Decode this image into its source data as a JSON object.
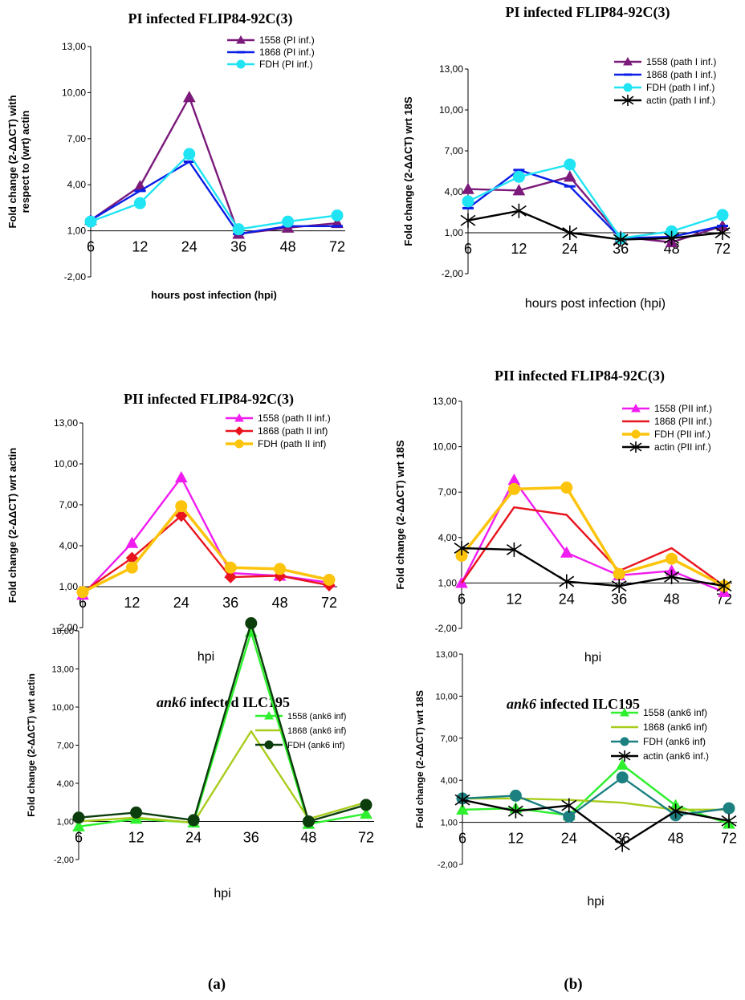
{
  "panel_labels": [
    "(a)",
    "(b)"
  ],
  "chart_data": [
    {
      "type": "line",
      "title": "PI infected FLIP84-92C(3)",
      "ylabel": "Fold change (2-ΔΔCT) with respect to (wrt) actin",
      "xlabel": "hours post infection (hpi)",
      "categories": [
        "6",
        "12",
        "24",
        "36",
        "48",
        "72"
      ],
      "yticks": [
        "-2,00",
        "1,00",
        "4,00",
        "7,00",
        "10,00",
        "13,00"
      ],
      "ylim": [
        -2,
        13
      ],
      "series": [
        {
          "name": "1558 (PI inf.)",
          "color": "#7b1a7b",
          "marker": "triangle",
          "values": [
            1.7,
            3.9,
            9.7,
            0.8,
            1.2,
            1.5
          ]
        },
        {
          "name": "1868 (PI inf.)",
          "color": "#0a1ee6",
          "marker": "dash",
          "values": [
            1.7,
            3.6,
            5.5,
            0.8,
            1.3,
            1.3
          ]
        },
        {
          "name": "FDH (PI inf.)",
          "color": "#20e4f4",
          "marker": "circle",
          "values": [
            1.6,
            2.8,
            6.0,
            1.1,
            1.6,
            2.0
          ]
        }
      ]
    },
    {
      "type": "line",
      "title": "PI infected FLIP84-92C(3)",
      "ylabel": "Fold change (2-ΔΔCT) wrt 18S",
      "xlabel": "hours post infection (hpi)",
      "categories": [
        "6",
        "12",
        "24",
        "36",
        "48",
        "72"
      ],
      "yticks": [
        "-2,00",
        "1,00",
        "4,00",
        "7,00",
        "10,00",
        "13,00"
      ],
      "ylim": [
        -2,
        13
      ],
      "series": [
        {
          "name": "1558 (path I inf.)",
          "color": "#7b1a7b",
          "marker": "triangle",
          "values": [
            4.2,
            4.1,
            5.1,
            0.7,
            0.3,
            1.5
          ]
        },
        {
          "name": "1868 (path I inf.)",
          "color": "#0a1ee6",
          "marker": "dash",
          "values": [
            2.8,
            5.6,
            4.4,
            0.6,
            0.7,
            1.5
          ]
        },
        {
          "name": "FDH (path I inf.)",
          "color": "#20e4f4",
          "marker": "circle",
          "values": [
            3.3,
            5.1,
            6.0,
            0.6,
            1.1,
            2.3
          ]
        },
        {
          "name": "actin (path I inf.)",
          "color": "#000000",
          "marker": "star",
          "values": [
            1.9,
            2.6,
            1.0,
            0.5,
            0.6,
            1.0
          ]
        }
      ]
    },
    {
      "type": "line",
      "title": "PII infected FLIP84-92C(3)",
      "ylabel": "Fold change (2-ΔΔCT) wrt actin",
      "xlabel": "hpi",
      "categories": [
        "6",
        "12",
        "24",
        "36",
        "48",
        "72"
      ],
      "yticks": [
        "-2,00",
        "1,00",
        "4,00",
        "7,00",
        "10,00",
        "13,00"
      ],
      "ylim": [
        -2,
        13
      ],
      "series": [
        {
          "name": "1558 (path II inf.)",
          "color": "#f01cf0",
          "marker": "triangle",
          "values": [
            0.4,
            4.2,
            9.0,
            2.0,
            1.8,
            1.3
          ]
        },
        {
          "name": "1868 (path II inf)",
          "color": "#e8141e",
          "marker": "diamond",
          "values": [
            0.6,
            3.1,
            6.2,
            1.7,
            1.8,
            1.1
          ]
        },
        {
          "name": "FDH (path II inf)",
          "color": "#fcc40c",
          "marker": "circle",
          "values": [
            0.6,
            2.4,
            6.9,
            2.4,
            2.3,
            1.5
          ]
        }
      ]
    },
    {
      "type": "line",
      "title": "PII infected FLIP84-92C(3)",
      "ylabel": "Fold change (2-ΔΔCT) wrt 18S",
      "xlabel": "hpi",
      "categories": [
        "6",
        "12",
        "24",
        "36",
        "48",
        "72"
      ],
      "yticks": [
        "-2,00",
        "1,00",
        "4,00",
        "7,00",
        "10,00",
        "13,00"
      ],
      "ylim": [
        -2,
        13
      ],
      "series": [
        {
          "name": "1558 (PII inf.)",
          "color": "#f01cf0",
          "marker": "triangle",
          "values": [
            1.0,
            7.8,
            3.0,
            1.5,
            1.8,
            0.4
          ]
        },
        {
          "name": "1868 (PII inf.)",
          "color": "#e8141e",
          "marker": "none",
          "values": [
            1.0,
            6.0,
            5.5,
            1.8,
            3.3,
            0.8
          ]
        },
        {
          "name": "FDH (PII inf.)",
          "color": "#fcc40c",
          "marker": "circle",
          "values": [
            2.8,
            7.2,
            7.3,
            1.6,
            2.6,
            0.8
          ]
        },
        {
          "name": "actin (PII inf.)",
          "color": "#000000",
          "marker": "star",
          "values": [
            3.3,
            3.2,
            1.1,
            0.8,
            1.4,
            0.8
          ]
        }
      ]
    },
    {
      "type": "line",
      "title": "ank6 infected ILC195",
      "title_italic": "ank6",
      "title_rest": " infected ILC195",
      "ylabel": "Fold change (2-ΔΔCT) wrt actin",
      "xlabel": "hpi",
      "categories": [
        "6",
        "12",
        "24",
        "36",
        "48",
        "72"
      ],
      "yticks": [
        "-2,00",
        "1,00",
        "4,00",
        "7,00",
        "10,00",
        "13,00",
        "16,00"
      ],
      "ylim": [
        -2,
        18
      ],
      "series": [
        {
          "name": "1558 (ank6 inf)",
          "color": "#2ef02e",
          "marker": "triangle",
          "values": [
            0.6,
            1.2,
            0.9,
            15.9,
            0.8,
            1.6
          ]
        },
        {
          "name": "1868 (ank6 inf)",
          "color": "#a8cc1c",
          "marker": "none",
          "values": [
            1.0,
            1.3,
            0.9,
            8.1,
            1.2,
            2.5
          ]
        },
        {
          "name": "FDH (ank6 inf)",
          "color": "#0c3d0c",
          "marker": "circle",
          "values": [
            1.3,
            1.7,
            1.1,
            16.6,
            1.0,
            2.3
          ]
        }
      ]
    },
    {
      "type": "line",
      "title": "ank6 infected ILC195",
      "title_italic": "ank6",
      "title_rest": " infected ILC195",
      "ylabel": "Fold change (2-ΔΔCT) wrt 18S",
      "xlabel": "hpi",
      "categories": [
        "6",
        "12",
        "24",
        "36",
        "48",
        "72"
      ],
      "yticks": [
        "-2,00",
        "1,00",
        "4,00",
        "7,00",
        "10,00",
        "13,00"
      ],
      "ylim": [
        -2,
        13
      ],
      "series": [
        {
          "name": "1558 (ank6 inf)",
          "color": "#2ef02e",
          "marker": "triangle",
          "values": [
            1.9,
            2.0,
            1.5,
            5.1,
            2.2,
            0.9
          ]
        },
        {
          "name": "1868 (ank6 inf)",
          "color": "#a8cc1c",
          "marker": "none",
          "values": [
            2.7,
            2.7,
            2.6,
            2.4,
            1.9,
            1.9
          ]
        },
        {
          "name": "FDH (ank6 inf)",
          "color": "#1c8080",
          "marker": "circle",
          "values": [
            2.7,
            2.9,
            1.4,
            4.2,
            1.5,
            2.0
          ]
        },
        {
          "name": "actin (ank6 inf.)",
          "color": "#000000",
          "marker": "star",
          "values": [
            2.6,
            1.8,
            2.2,
            -0.6,
            1.8,
            1.1
          ]
        }
      ]
    }
  ]
}
